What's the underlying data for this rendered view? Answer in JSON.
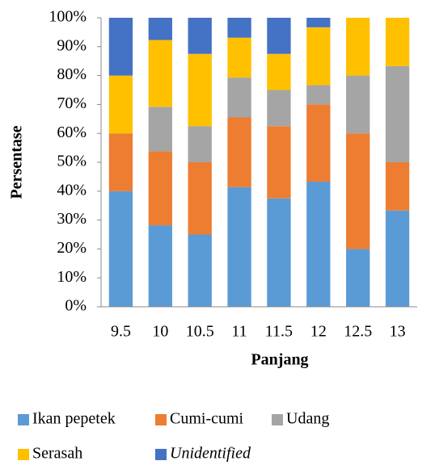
{
  "chart_data": {
    "type": "stacked_bar",
    "x_label": "Panjang",
    "y_label": "Persentase",
    "categories": [
      "9.5",
      "10",
      "10.5",
      "11",
      "11.5",
      "12",
      "12.5",
      "13"
    ],
    "series": [
      {
        "name": "Ikan pepetek",
        "color": "#5b9bd5",
        "values": [
          40,
          28.2,
          25,
          41.4,
          37.5,
          43.3,
          20,
          33.3
        ]
      },
      {
        "name": "Cumi-cumi",
        "color": "#ed7d31",
        "values": [
          20,
          25.6,
          25,
          24.1,
          25,
          26.7,
          40,
          16.7
        ]
      },
      {
        "name": "Udang",
        "color": "#a5a5a5",
        "values": [
          0,
          15.4,
          12.5,
          13.8,
          12.5,
          6.7,
          20,
          33.3
        ]
      },
      {
        "name": "Serasah",
        "color": "#ffc000",
        "values": [
          20,
          23.1,
          25,
          13.8,
          12.5,
          20,
          20,
          16.7
        ]
      },
      {
        "name": "Unidentified",
        "color": "#4472c4",
        "values": [
          20,
          7.7,
          12.5,
          6.9,
          12.5,
          3.3,
          0,
          0
        ]
      }
    ],
    "ylim": [
      0,
      100
    ],
    "yticks": [
      {
        "value": 0,
        "label": "0%"
      },
      {
        "value": 10,
        "label": "10%"
      },
      {
        "value": 20,
        "label": "20%"
      },
      {
        "value": 30,
        "label": "30%"
      },
      {
        "value": 40,
        "label": "40%"
      },
      {
        "value": 50,
        "label": "50%"
      },
      {
        "value": 60,
        "label": "60%"
      },
      {
        "value": 70,
        "label": "70%"
      },
      {
        "value": 80,
        "label": "80%"
      },
      {
        "value": 90,
        "label": "90%"
      },
      {
        "value": 100,
        "label": "100%"
      }
    ]
  }
}
